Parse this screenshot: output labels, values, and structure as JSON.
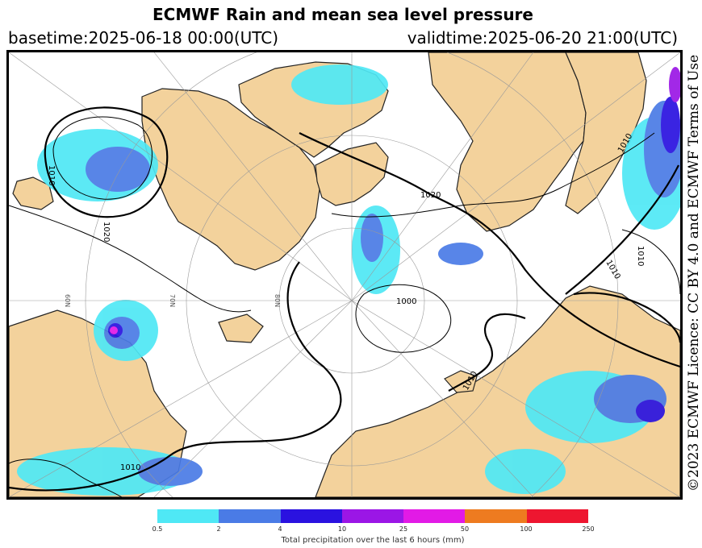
{
  "header": {
    "title": "ECMWF Rain and mean sea level pressure",
    "basetime": "basetime:2025-06-18 00:00(UTC)",
    "validtime": "validtime:2025-06-20 21:00(UTC)"
  },
  "licence": "©2023 ECMWF Licence: CC BY 4.0 and ECMWF Terms of Use",
  "isobar_labels": [
    "1010",
    "1020",
    "1000",
    "1010",
    "1010",
    "1020",
    "1010",
    "1010",
    "1010"
  ],
  "latitude_labels": [
    "80N",
    "70N",
    "60N"
  ],
  "legend": {
    "title": "Total precipitation over the last 6 hours (mm)",
    "ticks": [
      "0.5",
      "2",
      "4",
      "10",
      "25",
      "50",
      "100",
      "250"
    ],
    "colors": [
      "#4fe8f5",
      "#4a7be6",
      "#2a12e0",
      "#9b16e6",
      "#e21ae6",
      "#ee7b20",
      "#ee1630"
    ]
  },
  "colors": {
    "land": "#f3d29c",
    "ocean": "#ffffff",
    "rain_light": "#4fe8f5",
    "rain_mid": "#4a7be6",
    "rain_heavy": "#2a12e0",
    "rain_extreme": "#9b16e6",
    "rain_peak": "#e21ae6"
  }
}
